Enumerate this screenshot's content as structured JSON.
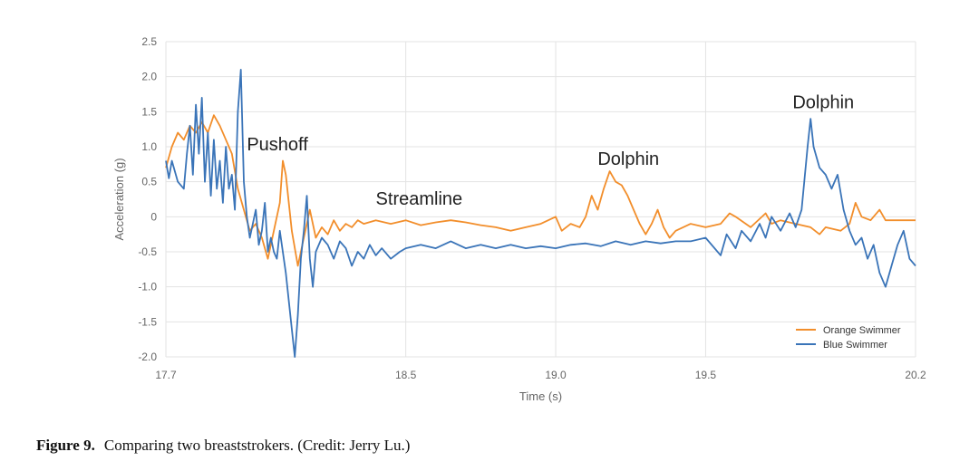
{
  "chart_data": {
    "type": "line",
    "xlabel": "Time (s)",
    "ylabel": "Acceleration (g)",
    "xlim": [
      17.7,
      20.2
    ],
    "ylim": [
      -2.0,
      2.5
    ],
    "x_ticks": [
      {
        "value": 17.7,
        "label": "17.7"
      },
      {
        "value": 18.5,
        "label": "18.5"
      },
      {
        "value": 19.0,
        "label": "19.0"
      },
      {
        "value": 19.5,
        "label": "19.5"
      },
      {
        "value": 20.2,
        "label": "20.2"
      }
    ],
    "y_ticks": [
      {
        "value": 2.5,
        "label": "2.5"
      },
      {
        "value": 2.0,
        "label": "2.0"
      },
      {
        "value": 1.5,
        "label": "1.5"
      },
      {
        "value": 1.0,
        "label": "1.0"
      },
      {
        "value": 0.5,
        "label": "0.5"
      },
      {
        "value": 0,
        "label": "0"
      },
      {
        "value": -0.5,
        "label": "-0.5"
      },
      {
        "value": -1.0,
        "label": "-1.0"
      },
      {
        "value": -1.5,
        "label": "-1.5"
      },
      {
        "value": -2.0,
        "label": "-2.0"
      }
    ],
    "grid": true,
    "legend_position": "bottom-right",
    "series": [
      {
        "name": "Orange Swimmer",
        "color": "#f28e2b",
        "points": [
          [
            17.7,
            0.7
          ],
          [
            17.72,
            1.0
          ],
          [
            17.74,
            1.2
          ],
          [
            17.76,
            1.1
          ],
          [
            17.78,
            1.3
          ],
          [
            17.8,
            1.2
          ],
          [
            17.82,
            1.35
          ],
          [
            17.84,
            1.2
          ],
          [
            17.86,
            1.45
          ],
          [
            17.88,
            1.3
          ],
          [
            17.9,
            1.1
          ],
          [
            17.92,
            0.9
          ],
          [
            17.94,
            0.4
          ],
          [
            17.96,
            0.1
          ],
          [
            17.98,
            -0.2
          ],
          [
            18.0,
            -0.1
          ],
          [
            18.02,
            -0.3
          ],
          [
            18.04,
            -0.6
          ],
          [
            18.06,
            -0.2
          ],
          [
            18.08,
            0.2
          ],
          [
            18.09,
            0.8
          ],
          [
            18.1,
            0.6
          ],
          [
            18.12,
            -0.2
          ],
          [
            18.14,
            -0.7
          ],
          [
            18.16,
            -0.3
          ],
          [
            18.18,
            0.1
          ],
          [
            18.2,
            -0.3
          ],
          [
            18.22,
            -0.15
          ],
          [
            18.24,
            -0.25
          ],
          [
            18.26,
            -0.05
          ],
          [
            18.28,
            -0.2
          ],
          [
            18.3,
            -0.1
          ],
          [
            18.32,
            -0.15
          ],
          [
            18.34,
            -0.05
          ],
          [
            18.36,
            -0.1
          ],
          [
            18.4,
            -0.05
          ],
          [
            18.45,
            -0.1
          ],
          [
            18.5,
            -0.05
          ],
          [
            18.55,
            -0.12
          ],
          [
            18.6,
            -0.08
          ],
          [
            18.65,
            -0.05
          ],
          [
            18.7,
            -0.08
          ],
          [
            18.75,
            -0.12
          ],
          [
            18.8,
            -0.15
          ],
          [
            18.85,
            -0.2
          ],
          [
            18.9,
            -0.15
          ],
          [
            18.95,
            -0.1
          ],
          [
            19.0,
            0.0
          ],
          [
            19.02,
            -0.2
          ],
          [
            19.05,
            -0.1
          ],
          [
            19.08,
            -0.15
          ],
          [
            19.1,
            0.0
          ],
          [
            19.12,
            0.3
          ],
          [
            19.14,
            0.1
          ],
          [
            19.16,
            0.4
          ],
          [
            19.18,
            0.65
          ],
          [
            19.2,
            0.5
          ],
          [
            19.22,
            0.45
          ],
          [
            19.24,
            0.3
          ],
          [
            19.26,
            0.1
          ],
          [
            19.28,
            -0.1
          ],
          [
            19.3,
            -0.25
          ],
          [
            19.32,
            -0.1
          ],
          [
            19.34,
            0.1
          ],
          [
            19.36,
            -0.15
          ],
          [
            19.38,
            -0.3
          ],
          [
            19.4,
            -0.2
          ],
          [
            19.45,
            -0.1
          ],
          [
            19.5,
            -0.15
          ],
          [
            19.55,
            -0.1
          ],
          [
            19.58,
            0.05
          ],
          [
            19.6,
            0.0
          ],
          [
            19.65,
            -0.15
          ],
          [
            19.7,
            0.05
          ],
          [
            19.72,
            -0.1
          ],
          [
            19.75,
            -0.05
          ],
          [
            19.8,
            -0.1
          ],
          [
            19.85,
            -0.15
          ],
          [
            19.88,
            -0.25
          ],
          [
            19.9,
            -0.15
          ],
          [
            19.95,
            -0.2
          ],
          [
            19.98,
            -0.1
          ],
          [
            20.0,
            0.2
          ],
          [
            20.02,
            0.0
          ],
          [
            20.05,
            -0.05
          ],
          [
            20.08,
            0.1
          ],
          [
            20.1,
            -0.05
          ],
          [
            20.15,
            -0.05
          ],
          [
            20.2,
            -0.05
          ]
        ]
      },
      {
        "name": "Blue Swimmer",
        "color": "#3a74b8",
        "points": [
          [
            17.7,
            0.8
          ],
          [
            17.71,
            0.55
          ],
          [
            17.72,
            0.8
          ],
          [
            17.74,
            0.5
          ],
          [
            17.76,
            0.4
          ],
          [
            17.77,
            0.9
          ],
          [
            17.78,
            1.3
          ],
          [
            17.79,
            0.6
          ],
          [
            17.8,
            1.6
          ],
          [
            17.81,
            0.9
          ],
          [
            17.82,
            1.7
          ],
          [
            17.83,
            0.5
          ],
          [
            17.84,
            1.2
          ],
          [
            17.85,
            0.3
          ],
          [
            17.86,
            1.1
          ],
          [
            17.87,
            0.4
          ],
          [
            17.88,
            0.8
          ],
          [
            17.89,
            0.2
          ],
          [
            17.9,
            1.0
          ],
          [
            17.91,
            0.4
          ],
          [
            17.92,
            0.6
          ],
          [
            17.93,
            0.1
          ],
          [
            17.94,
            1.5
          ],
          [
            17.95,
            2.1
          ],
          [
            17.96,
            0.5
          ],
          [
            17.97,
            0.0
          ],
          [
            17.98,
            -0.3
          ],
          [
            17.99,
            -0.1
          ],
          [
            18.0,
            0.1
          ],
          [
            18.01,
            -0.4
          ],
          [
            18.02,
            -0.2
          ],
          [
            18.03,
            0.2
          ],
          [
            18.04,
            -0.5
          ],
          [
            18.05,
            -0.3
          ],
          [
            18.06,
            -0.5
          ],
          [
            18.07,
            -0.6
          ],
          [
            18.08,
            -0.2
          ],
          [
            18.09,
            -0.5
          ],
          [
            18.1,
            -0.8
          ],
          [
            18.11,
            -1.2
          ],
          [
            18.12,
            -1.6
          ],
          [
            18.13,
            -2.0
          ],
          [
            18.14,
            -1.4
          ],
          [
            18.15,
            -0.6
          ],
          [
            18.16,
            -0.2
          ],
          [
            18.17,
            0.3
          ],
          [
            18.18,
            -0.6
          ],
          [
            18.19,
            -1.0
          ],
          [
            18.2,
            -0.5
          ],
          [
            18.22,
            -0.3
          ],
          [
            18.24,
            -0.4
          ],
          [
            18.26,
            -0.6
          ],
          [
            18.28,
            -0.35
          ],
          [
            18.3,
            -0.45
          ],
          [
            18.32,
            -0.7
          ],
          [
            18.34,
            -0.5
          ],
          [
            18.36,
            -0.6
          ],
          [
            18.38,
            -0.4
          ],
          [
            18.4,
            -0.55
          ],
          [
            18.42,
            -0.45
          ],
          [
            18.45,
            -0.6
          ],
          [
            18.48,
            -0.5
          ],
          [
            18.5,
            -0.45
          ],
          [
            18.55,
            -0.4
          ],
          [
            18.6,
            -0.45
          ],
          [
            18.65,
            -0.35
          ],
          [
            18.7,
            -0.45
          ],
          [
            18.75,
            -0.4
          ],
          [
            18.8,
            -0.45
          ],
          [
            18.85,
            -0.4
          ],
          [
            18.9,
            -0.45
          ],
          [
            18.95,
            -0.42
          ],
          [
            19.0,
            -0.45
          ],
          [
            19.05,
            -0.4
          ],
          [
            19.1,
            -0.38
          ],
          [
            19.15,
            -0.42
          ],
          [
            19.2,
            -0.35
          ],
          [
            19.25,
            -0.4
          ],
          [
            19.3,
            -0.35
          ],
          [
            19.35,
            -0.38
          ],
          [
            19.4,
            -0.35
          ],
          [
            19.45,
            -0.35
          ],
          [
            19.5,
            -0.3
          ],
          [
            19.55,
            -0.55
          ],
          [
            19.57,
            -0.25
          ],
          [
            19.6,
            -0.45
          ],
          [
            19.62,
            -0.2
          ],
          [
            19.65,
            -0.35
          ],
          [
            19.68,
            -0.1
          ],
          [
            19.7,
            -0.3
          ],
          [
            19.72,
            0.0
          ],
          [
            19.75,
            -0.2
          ],
          [
            19.78,
            0.05
          ],
          [
            19.8,
            -0.15
          ],
          [
            19.82,
            0.1
          ],
          [
            19.84,
            1.0
          ],
          [
            19.85,
            1.4
          ],
          [
            19.86,
            1.0
          ],
          [
            19.88,
            0.7
          ],
          [
            19.9,
            0.6
          ],
          [
            19.92,
            0.4
          ],
          [
            19.94,
            0.6
          ],
          [
            19.96,
            0.1
          ],
          [
            19.98,
            -0.2
          ],
          [
            20.0,
            -0.4
          ],
          [
            20.02,
            -0.3
          ],
          [
            20.04,
            -0.6
          ],
          [
            20.06,
            -0.4
          ],
          [
            20.08,
            -0.8
          ],
          [
            20.1,
            -1.0
          ],
          [
            20.12,
            -0.7
          ],
          [
            20.14,
            -0.4
          ],
          [
            20.16,
            -0.2
          ],
          [
            20.18,
            -0.6
          ],
          [
            20.2,
            -0.7
          ]
        ]
      }
    ],
    "annotations": [
      {
        "text": "Pushoff",
        "x": 17.97,
        "y": 0.95
      },
      {
        "text": "Streamline",
        "x": 18.4,
        "y": 0.17
      },
      {
        "text": "Dolphin",
        "x": 19.14,
        "y": 0.74
      },
      {
        "text": "Dolphin",
        "x": 19.79,
        "y": 1.55
      }
    ]
  },
  "caption": {
    "label": "Figure 9.",
    "text": "Comparing two breaststrokers. (Credit: Jerry Lu.)"
  }
}
